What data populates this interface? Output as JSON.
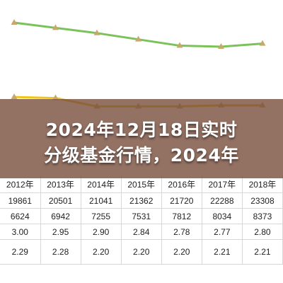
{
  "headline": {
    "line1": "2024年12月18日实时",
    "line2": "分级基金行情，2024年"
  },
  "colors": {
    "green_series": "#7cc25a",
    "yellow_series": "#f0c419",
    "marker": "#c9a86b",
    "bar_blue": "#2e6fd0",
    "bar_orange": "#f08c3c",
    "overlay": "#784e3c"
  },
  "chart_data": {
    "type": "line",
    "x": [
      "2012年",
      "2013年",
      "2014年",
      "2015年",
      "2016年",
      "2017年",
      "2018年"
    ],
    "series": [
      {
        "values": [
          3.0,
          2.95,
          2.9,
          2.84,
          2.78,
          2.77,
          2.8
        ]
      },
      {
        "values": [
          2.29,
          2.28,
          2.2,
          2.2,
          2.2,
          2.21,
          2.21
        ]
      }
    ],
    "table": {
      "columns": [
        "2012年",
        "2013年",
        "2014年",
        "2015年",
        "2016年",
        "2017年",
        "2018年"
      ],
      "rows": [
        [
          "19861",
          "20501",
          "21041",
          "21362",
          "21720",
          "22288",
          "23308"
        ],
        [
          "6624",
          "6942",
          "7255",
          "7531",
          "7812",
          "8034",
          "8373"
        ],
        [
          "3.00",
          "2.95",
          "2.90",
          "2.84",
          "2.78",
          "2.77",
          "2.80"
        ],
        [
          "2.29",
          "2.28",
          "2.20",
          "2.20",
          "2.20",
          "2.21",
          "2.21"
        ]
      ]
    }
  }
}
